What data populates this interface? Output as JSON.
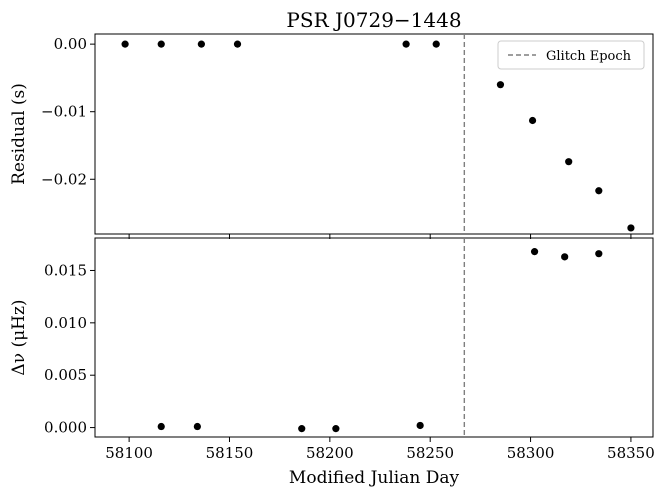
{
  "chart_data": {
    "title": "PSR J0729−1448",
    "xlabel": "Modified Julian Day",
    "xlim": [
      58083,
      58361
    ],
    "xticks": [
      58100,
      58150,
      58200,
      58250,
      58300,
      58350
    ],
    "xtick_labels": [
      "58100",
      "58150",
      "58200",
      "58250",
      "58300",
      "58350"
    ],
    "glitch_epoch": 58267,
    "legend": {
      "label": "Glitch Epoch",
      "placement": "top-right"
    },
    "colors": {
      "points": "#000000",
      "glitch_line": "#7f7f7f",
      "axes": "#000000"
    },
    "panels": [
      {
        "type": "scatter",
        "ylabel": "Residual (s)",
        "ylim": [
          -0.0281,
          0.0015
        ],
        "yticks": [
          0.0,
          -0.01,
          -0.02
        ],
        "ytick_labels": [
          "0.00",
          "−0.01",
          "−0.02"
        ],
        "series": [
          {
            "x": [
              58098,
              58116,
              58136,
              58154,
              58238,
              58253,
              58285,
              58301,
              58319,
              58334,
              58350
            ],
            "y": [
              0.0,
              0.0,
              0.0,
              0.0,
              0.0,
              0.0,
              -0.006,
              -0.0113,
              -0.0174,
              -0.0217,
              -0.0272
            ]
          }
        ]
      },
      {
        "type": "scatter",
        "ylabel": "Δν (μHz)",
        "ylim": [
          -0.0009,
          0.0181
        ],
        "yticks": [
          0.0,
          0.005,
          0.01,
          0.015
        ],
        "ytick_labels": [
          "0.000",
          "0.005",
          "0.010",
          "0.015"
        ],
        "series": [
          {
            "x": [
              58116,
              58134,
              58186,
              58203,
              58245,
              58302,
              58317,
              58334
            ],
            "y": [
              0.0001,
              0.0001,
              -0.0001,
              -0.0001,
              0.0002,
              0.0168,
              0.0163,
              0.0166
            ]
          }
        ]
      }
    ]
  }
}
